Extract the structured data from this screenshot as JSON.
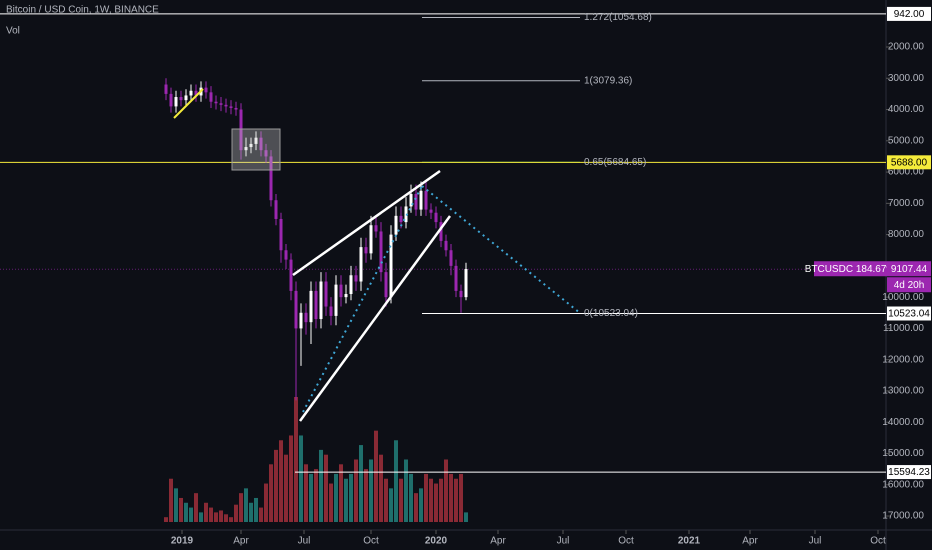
{
  "chart_data": {
    "type": "candlestick",
    "title": "Bitcoin / USD Coin, 1W, BINANCE",
    "subtitle": "Vol",
    "ylim": [
      497,
      17447
    ],
    "y_inverted": true,
    "yticks": [
      {
        "value": 2000,
        "label": "2000.00"
      },
      {
        "value": 3000,
        "label": "3000.00"
      },
      {
        "value": 4000,
        "label": "4000.00"
      },
      {
        "value": 5000,
        "label": "5000.00"
      },
      {
        "value": 6000,
        "label": "6000.00"
      },
      {
        "value": 7000,
        "label": "7000.00"
      },
      {
        "value": 8000,
        "label": "8000.00"
      },
      {
        "value": 10000,
        "label": "10000.00"
      },
      {
        "value": 11000,
        "label": "11000.00"
      },
      {
        "value": 12000,
        "label": "12000.00"
      },
      {
        "value": 13000,
        "label": "13000.00"
      },
      {
        "value": 14000,
        "label": "14000.00"
      },
      {
        "value": 15000,
        "label": "15000.00"
      },
      {
        "value": 16000,
        "label": "16000.00"
      },
      {
        "value": 17000,
        "label": "17000.00"
      }
    ],
    "xlim": [
      -33.2,
      143.8
    ],
    "xticks": [
      {
        "value": 3.2,
        "label": "2019"
      },
      {
        "value": 15,
        "label": "Apr"
      },
      {
        "value": 27.6,
        "label": "Jul"
      },
      {
        "value": 41,
        "label": "Oct"
      },
      {
        "value": 54,
        "label": "2020"
      },
      {
        "value": 66.4,
        "label": "Apr"
      },
      {
        "value": 79.4,
        "label": "Jul"
      },
      {
        "value": 92,
        "label": "Oct"
      },
      {
        "value": 104.6,
        "label": "2021"
      },
      {
        "value": 116.8,
        "label": "Apr"
      },
      {
        "value": 129.8,
        "label": "Jul"
      },
      {
        "value": 142.4,
        "label": "Oct"
      }
    ],
    "open": [
      3200,
      3500,
      3900,
      3600,
      3700,
      3550,
      3400,
      3550,
      3300,
      3450,
      3750,
      3800,
      3850,
      3900,
      3950,
      4000,
      5300,
      5200,
      5100,
      4900,
      5300,
      5500,
      6900,
      7500,
      8500,
      8800,
      9800,
      11000,
      10500,
      10800,
      9800,
      10700,
      9500,
      10300,
      10600,
      9600,
      10000,
      9900,
      9300,
      9500,
      8400,
      8600,
      7700,
      7900,
      9200,
      10000,
      8000,
      7400,
      7600,
      7100,
      6700,
      7200,
      6600,
      7200,
      7300,
      7600,
      8200,
      8500,
      9000,
      9800,
      10000
    ],
    "high": [
      3700,
      4100,
      4100,
      3900,
      3900,
      3750,
      3750,
      3750,
      3650,
      3950,
      4000,
      4050,
      4100,
      4150,
      4200,
      5600,
      5500,
      5400,
      5300,
      5500,
      5700,
      7100,
      7700,
      8900,
      9100,
      10100,
      13300,
      12200,
      11200,
      11500,
      11000,
      11000,
      10600,
      10900,
      10900,
      10300,
      10200,
      10100,
      9800,
      9800,
      8900,
      8800,
      8100,
      9500,
      10300,
      10200,
      8200,
      7800,
      7800,
      7300,
      7400,
      7400,
      7400,
      7500,
      7800,
      8400,
      8700,
      9300,
      10000,
      10500,
      10100
    ],
    "low": [
      3000,
      3300,
      3400,
      3400,
      3350,
      3200,
      3200,
      3100,
      3100,
      3250,
      3550,
      3600,
      3650,
      3700,
      3750,
      3800,
      4900,
      4900,
      4700,
      4700,
      5100,
      5300,
      6700,
      7300,
      8300,
      8600,
      9500,
      10200,
      10200,
      9500,
      9500,
      9200,
      9200,
      10000,
      9300,
      9300,
      9600,
      9000,
      9000,
      8100,
      8100,
      7400,
      7400,
      7600,
      8900,
      7700,
      7100,
      7100,
      6800,
      6400,
      6400,
      6300,
      6300,
      7000,
      7100,
      7400,
      8000,
      8300,
      8800,
      9600,
      8900
    ],
    "close": [
      3500,
      3900,
      3600,
      3700,
      3550,
      3400,
      3550,
      3300,
      3450,
      3750,
      3800,
      3850,
      3900,
      3950,
      4000,
      5300,
      5200,
      5100,
      4900,
      5300,
      5500,
      6900,
      7500,
      8500,
      8800,
      9800,
      11000,
      10500,
      10800,
      9800,
      10700,
      9500,
      10300,
      10600,
      9600,
      10000,
      9900,
      9300,
      9500,
      8400,
      8600,
      7700,
      7900,
      9200,
      10000,
      8000,
      7400,
      7600,
      7100,
      6700,
      7200,
      6600,
      7200,
      7300,
      7600,
      8200,
      8500,
      9000,
      9800,
      10000,
      9100
    ],
    "volume": [
      5,
      45,
      35,
      25,
      20,
      15,
      30,
      10,
      20,
      15,
      10,
      12,
      8,
      5,
      18,
      30,
      35,
      20,
      25,
      15,
      40,
      60,
      75,
      85,
      70,
      90,
      130,
      90,
      60,
      50,
      55,
      75,
      70,
      40,
      50,
      60,
      45,
      50,
      65,
      80,
      55,
      65,
      95,
      70,
      45,
      35,
      85,
      45,
      65,
      50,
      30,
      35,
      50,
      45,
      40,
      45,
      65,
      50,
      45,
      50,
      10
    ],
    "vlim": [
      0,
      130
    ],
    "up_color": "#ffffff",
    "down_color": "#9c27b0",
    "volume_up_color": "#1f6f6c",
    "volume_down_color": "#8a2a35",
    "price_lines": [
      {
        "value": 942,
        "label": "942.00",
        "color": "#ffffff"
      },
      {
        "value": 5688,
        "label": "5688.00",
        "color": "#f5eb3b"
      },
      {
        "value": 10523.04,
        "label": "10523.04",
        "color": "#ffffff"
      },
      {
        "value": 15594.23,
        "label": "15594.23",
        "color": "#ffffff"
      }
    ],
    "fib_levels": [
      {
        "value": 1054.68,
        "label": "1.272(1054.68)",
        "color": "#b2b5be"
      },
      {
        "value": 3079.36,
        "label": "1(3079.36)",
        "color": "#b2b5be"
      },
      {
        "value": 5684.65,
        "label": "0.65(5684.65)",
        "color": "#4caf50"
      },
      {
        "value": 10523.04,
        "label": "0(10523.04)",
        "color": "#b2b5be"
      }
    ],
    "last_price": {
      "symbol_label": "BTCUSDC 184.67%",
      "value": 9107.44,
      "label": "9107.44",
      "countdown": "4d 20h",
      "color": "#9c27b0"
    }
  }
}
